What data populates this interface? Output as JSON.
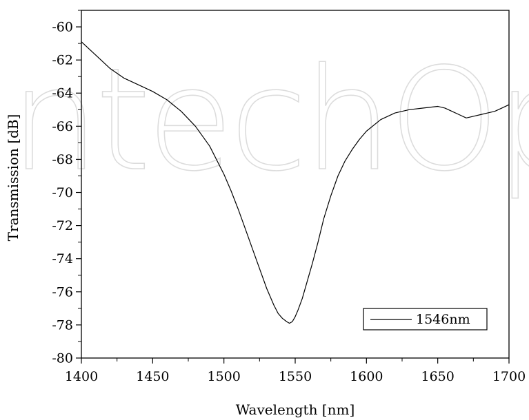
{
  "chart_data": {
    "type": "line",
    "title": "",
    "xlabel": "Wavelength [nm]",
    "ylabel": "Transmission [dB]",
    "xlim": [
      1400,
      1700
    ],
    "ylim": [
      -80,
      -59
    ],
    "xticks": [
      1400,
      1450,
      1500,
      1550,
      1600,
      1650,
      1700
    ],
    "yticks": [
      -80,
      -78,
      -76,
      -74,
      -72,
      -70,
      -68,
      -66,
      -64,
      -62,
      -60
    ],
    "grid": false,
    "legend_position": "bottom-right",
    "series": [
      {
        "name": "1546nm",
        "color": "#000000",
        "x": [
          1400,
          1410,
          1420,
          1430,
          1440,
          1450,
          1460,
          1470,
          1480,
          1490,
          1500,
          1505,
          1510,
          1515,
          1520,
          1525,
          1530,
          1535,
          1538,
          1541,
          1544,
          1546,
          1548,
          1550,
          1552,
          1555,
          1558,
          1562,
          1566,
          1570,
          1575,
          1580,
          1585,
          1590,
          1595,
          1600,
          1610,
          1620,
          1630,
          1640,
          1650,
          1655,
          1660,
          1665,
          1670,
          1675,
          1680,
          1685,
          1690,
          1695,
          1700
        ],
        "y": [
          -60.9,
          -61.7,
          -62.5,
          -63.1,
          -63.5,
          -63.9,
          -64.4,
          -65.1,
          -66.0,
          -67.2,
          -68.9,
          -69.9,
          -71.0,
          -72.2,
          -73.4,
          -74.6,
          -75.8,
          -76.8,
          -77.3,
          -77.6,
          -77.8,
          -77.9,
          -77.8,
          -77.5,
          -77.1,
          -76.4,
          -75.5,
          -74.3,
          -73.0,
          -71.6,
          -70.2,
          -69.0,
          -68.1,
          -67.4,
          -66.8,
          -66.3,
          -65.6,
          -65.2,
          -65.0,
          -64.9,
          -64.8,
          -64.9,
          -65.1,
          -65.3,
          -65.5,
          -65.4,
          -65.3,
          -65.2,
          -65.1,
          -64.9,
          -64.7
        ]
      }
    ],
    "colors": {
      "axis": "#000000",
      "line": "#000000",
      "watermark": "#dcdcdc"
    }
  },
  "watermark_text": "IntechOpen"
}
